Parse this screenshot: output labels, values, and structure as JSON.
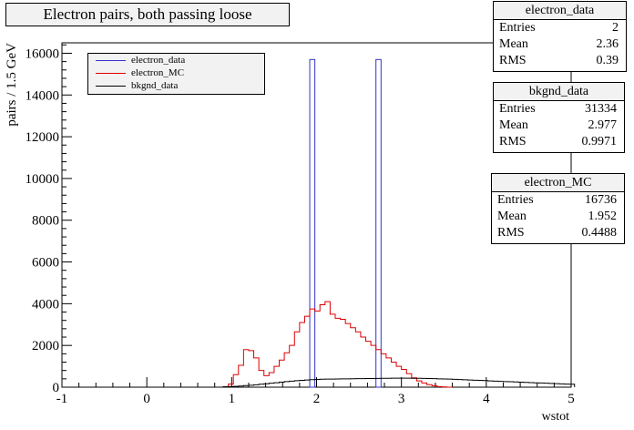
{
  "title": "Electron pairs, both passing loose",
  "chart_data": {
    "type": "histogram",
    "xlabel": "wstot",
    "ylabel": "pairs / 1.5 GeV",
    "xlim": [
      -1,
      5
    ],
    "ylim": [
      0,
      16500
    ],
    "x_ticks": [
      "-1",
      "0",
      "1",
      "2",
      "3",
      "4",
      "5"
    ],
    "y_ticks": [
      "0",
      "2000",
      "4000",
      "6000",
      "8000",
      "10000",
      "12000",
      "14000",
      "16000"
    ],
    "bin_width": 0.06,
    "series": [
      {
        "name": "electron_data",
        "color": "#3333cc",
        "bin_lo": [
          1.92,
          2.7
        ],
        "values": [
          15700,
          15700
        ]
      },
      {
        "name": "electron_MC",
        "color": "#dd0000",
        "start": 0.96,
        "values": [
          150,
          600,
          1050,
          1800,
          1750,
          1400,
          800,
          550,
          700,
          1000,
          1300,
          1650,
          2000,
          2650,
          3100,
          3400,
          3750,
          3650,
          3950,
          4100,
          3500,
          3300,
          3250,
          3050,
          2850,
          2650,
          2400,
          2200,
          2000,
          1800,
          1600,
          1400,
          1200,
          1000,
          850,
          650,
          450,
          300,
          200,
          120,
          70,
          30,
          10,
          0
        ]
      },
      {
        "name": "bkgnd_data",
        "color": "#000000",
        "start": 0.9,
        "values": [
          20,
          30,
          40,
          55,
          75,
          95,
          115,
          140,
          165,
          190,
          215,
          240,
          265,
          290,
          310,
          330,
          345,
          360,
          370,
          380,
          385,
          390,
          395,
          400,
          400,
          405,
          410,
          410,
          415,
          415,
          420,
          425,
          425,
          430,
          430,
          430,
          430,
          425,
          425,
          420,
          415,
          410,
          400,
          395,
          385,
          375,
          365,
          355,
          345,
          335,
          325,
          315,
          300,
          290,
          280,
          270,
          260,
          250,
          240,
          230,
          220,
          210,
          200,
          190,
          180,
          170,
          160,
          150,
          140
        ]
      }
    ]
  },
  "legend": [
    "electron_data",
    "electron_MC",
    "bkgnd_data"
  ],
  "stats_boxes": [
    {
      "title": "electron_data",
      "rows": [
        [
          "Entries",
          "2"
        ],
        [
          "Mean",
          "2.36"
        ],
        [
          "RMS",
          "0.39"
        ]
      ]
    },
    {
      "title": "bkgnd_data",
      "rows": [
        [
          "Entries",
          "31334"
        ],
        [
          "Mean",
          "2.977"
        ],
        [
          "RMS",
          "0.9971"
        ]
      ]
    },
    {
      "title": "electron_MC",
      "rows": [
        [
          "Entries",
          "16736"
        ],
        [
          "Mean",
          "1.952"
        ],
        [
          "RMS",
          "0.4488"
        ]
      ]
    }
  ]
}
